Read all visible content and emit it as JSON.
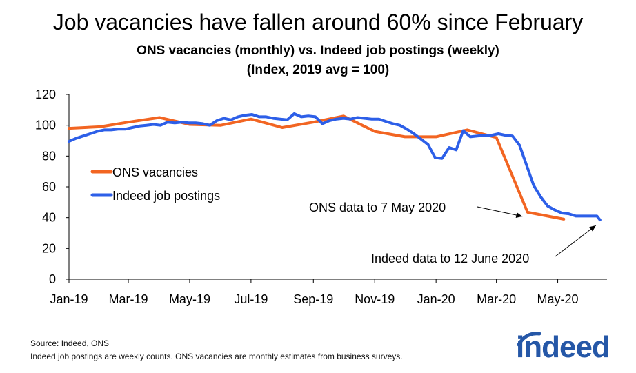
{
  "title": "Job vacancies have fallen around 60% since February",
  "subtitle_line1": "ONS vacancies (monthly) vs. Indeed job postings (weekly)",
  "subtitle_line2": "(Index, 2019 avg = 100)",
  "footer": {
    "source": "Source: Indeed, ONS",
    "note": "Indeed job postings are weekly counts. ONS vacancies are monthly estimates from business surveys."
  },
  "logo_text": "indeed",
  "colors": {
    "ons": "#f26522",
    "indeed": "#2d5fe8",
    "axis": "#000000"
  },
  "chart_data": {
    "type": "line",
    "title": "Job vacancies have fallen around 60% since February",
    "subtitle": "ONS vacancies (monthly) vs. Indeed job postings (weekly) (Index, 2019 avg = 100)",
    "xlabel": "",
    "ylabel": "",
    "ylim": [
      0,
      120
    ],
    "y_ticks": [
      0,
      20,
      40,
      60,
      80,
      100,
      120
    ],
    "x_range": [
      "2019-01-01",
      "2020-06-19"
    ],
    "x_ticks": [
      {
        "date": "2019-01-01",
        "label": "Jan-19"
      },
      {
        "date": "2019-03-01",
        "label": "Mar-19"
      },
      {
        "date": "2019-05-01",
        "label": "May-19"
      },
      {
        "date": "2019-07-01",
        "label": "Jul-19"
      },
      {
        "date": "2019-09-01",
        "label": "Sep-19"
      },
      {
        "date": "2019-11-01",
        "label": "Nov-19"
      },
      {
        "date": "2020-01-01",
        "label": "Jan-20"
      },
      {
        "date": "2020-03-01",
        "label": "Mar-20"
      },
      {
        "date": "2020-05-01",
        "label": "May-20"
      }
    ],
    "grid": false,
    "legend_position": "left",
    "series": [
      {
        "name": "ONS vacancies",
        "color": "#f26522",
        "points": [
          [
            "2019-01-01",
            98
          ],
          [
            "2019-02-01",
            99
          ],
          [
            "2019-03-01",
            102
          ],
          [
            "2019-04-01",
            105
          ],
          [
            "2019-05-01",
            100.5
          ],
          [
            "2019-06-01",
            100
          ],
          [
            "2019-07-01",
            104
          ],
          [
            "2019-08-01",
            98.5
          ],
          [
            "2019-09-01",
            102
          ],
          [
            "2019-10-01",
            106
          ],
          [
            "2019-11-01",
            96
          ],
          [
            "2019-12-01",
            92.5
          ],
          [
            "2020-01-01",
            92.5
          ],
          [
            "2020-02-01",
            97
          ],
          [
            "2020-03-01",
            92
          ],
          [
            "2020-04-01",
            43.5
          ],
          [
            "2020-05-07",
            39
          ]
        ]
      },
      {
        "name": "Indeed job postings",
        "color": "#2d5fe8",
        "points": [
          [
            "2019-01-01",
            89.5
          ],
          [
            "2019-01-08",
            91.5
          ],
          [
            "2019-01-15",
            93
          ],
          [
            "2019-01-22",
            94.5
          ],
          [
            "2019-01-29",
            96
          ],
          [
            "2019-02-05",
            97
          ],
          [
            "2019-02-12",
            97
          ],
          [
            "2019-02-19",
            97.5
          ],
          [
            "2019-02-26",
            97.5
          ],
          [
            "2019-03-05",
            98.5
          ],
          [
            "2019-03-12",
            99.5
          ],
          [
            "2019-03-19",
            100
          ],
          [
            "2019-03-26",
            100.5
          ],
          [
            "2019-04-02",
            100
          ],
          [
            "2019-04-09",
            102
          ],
          [
            "2019-04-16",
            101.5
          ],
          [
            "2019-04-23",
            102
          ],
          [
            "2019-04-30",
            101.5
          ],
          [
            "2019-05-07",
            101.5
          ],
          [
            "2019-05-14",
            101
          ],
          [
            "2019-05-21",
            100
          ],
          [
            "2019-05-28",
            103
          ],
          [
            "2019-06-04",
            104.5
          ],
          [
            "2019-06-11",
            103.5
          ],
          [
            "2019-06-18",
            105.5
          ],
          [
            "2019-06-25",
            106.5
          ],
          [
            "2019-07-02",
            107
          ],
          [
            "2019-07-09",
            105.5
          ],
          [
            "2019-07-16",
            105.5
          ],
          [
            "2019-07-23",
            104.5
          ],
          [
            "2019-07-30",
            104
          ],
          [
            "2019-08-06",
            103.5
          ],
          [
            "2019-08-13",
            107.5
          ],
          [
            "2019-08-20",
            105.5
          ],
          [
            "2019-08-27",
            106
          ],
          [
            "2019-09-03",
            105.5
          ],
          [
            "2019-09-10",
            101
          ],
          [
            "2019-09-17",
            103
          ],
          [
            "2019-09-24",
            104
          ],
          [
            "2019-10-01",
            104.5
          ],
          [
            "2019-10-08",
            104
          ],
          [
            "2019-10-15",
            105
          ],
          [
            "2019-10-22",
            104.5
          ],
          [
            "2019-10-29",
            104
          ],
          [
            "2019-11-05",
            104
          ],
          [
            "2019-11-12",
            102.5
          ],
          [
            "2019-11-19",
            101
          ],
          [
            "2019-11-26",
            100
          ],
          [
            "2019-12-03",
            97.5
          ],
          [
            "2019-12-10",
            94.5
          ],
          [
            "2019-12-17",
            91
          ],
          [
            "2019-12-24",
            87.5
          ],
          [
            "2019-12-31",
            79
          ],
          [
            "2020-01-07",
            78.5
          ],
          [
            "2020-01-14",
            85.5
          ],
          [
            "2020-01-21",
            84
          ],
          [
            "2020-01-28",
            96.5
          ],
          [
            "2020-02-04",
            92.5
          ],
          [
            "2020-02-11",
            93
          ],
          [
            "2020-02-18",
            93.5
          ],
          [
            "2020-02-25",
            93.5
          ],
          [
            "2020-03-03",
            94.5
          ],
          [
            "2020-03-10",
            93.5
          ],
          [
            "2020-03-17",
            93
          ],
          [
            "2020-03-24",
            87
          ],
          [
            "2020-03-31",
            74
          ],
          [
            "2020-04-07",
            61
          ],
          [
            "2020-04-14",
            53.5
          ],
          [
            "2020-04-21",
            47.5
          ],
          [
            "2020-04-28",
            45
          ],
          [
            "2020-05-05",
            43
          ],
          [
            "2020-05-12",
            42.5
          ],
          [
            "2020-05-19",
            41
          ],
          [
            "2020-05-26",
            41
          ],
          [
            "2020-06-02",
            41
          ],
          [
            "2020-06-09",
            41
          ],
          [
            "2020-06-12",
            38.5
          ]
        ]
      }
    ],
    "annotations": [
      {
        "text": "ONS data to 7 May 2020",
        "target": [
          "2020-05-07",
          39
        ]
      },
      {
        "text": "Indeed data to 12 June 2020",
        "target": [
          "2020-06-12",
          38.5
        ]
      }
    ]
  }
}
